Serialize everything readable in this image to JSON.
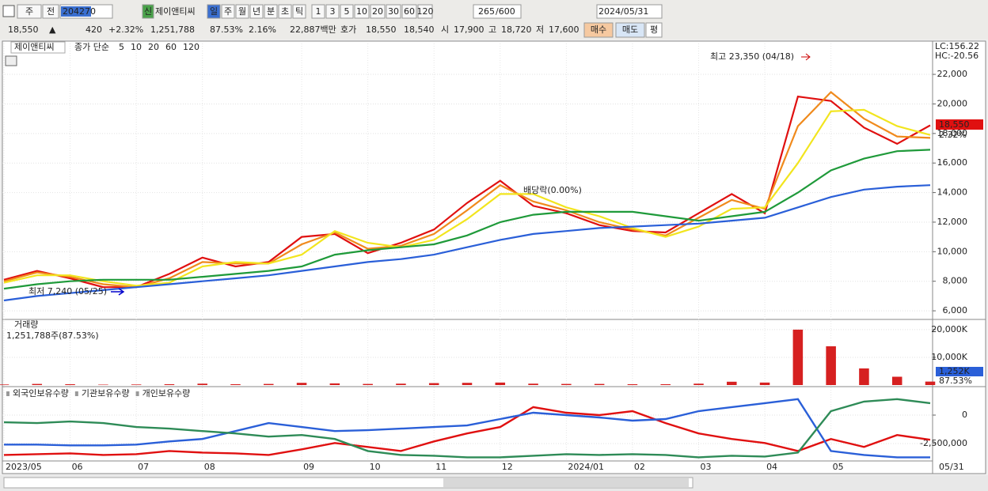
{
  "toolbar": {
    "period": "주",
    "prev": "전",
    "code": "204270",
    "new_badge": "신",
    "name": "제이앤티씨",
    "intervals": [
      "일",
      "주",
      "월",
      "년",
      "분",
      "초",
      "틱"
    ],
    "minutes": [
      "1",
      "3",
      "5",
      "10",
      "20",
      "30",
      "60",
      "120"
    ],
    "count": "265",
    "max": "/600",
    "date": "2024/05/31"
  },
  "info": {
    "close": "18,550",
    "dir": "▲",
    "change": "420",
    "rate": "+2.32%",
    "volume": "1,251,788",
    "vol_ratio": "87.53%",
    "turnover": "2.16%",
    "amount": "22,887백만",
    "quote": "호가",
    "ask": "18,550",
    "bid": "18,540",
    "open_label": "시",
    "open": "17,900",
    "high_label": "고",
    "high": "18,720",
    "low_label": "저",
    "low": "17,600",
    "buy": "매수",
    "sell": "매도",
    "avg": "평"
  },
  "chart_data": [
    {
      "type": "line",
      "name": "제이앤티씨",
      "legend_prefix": "종가 단순",
      "categories": [
        "2023/05",
        null,
        "06",
        null,
        "07",
        null,
        "08",
        null,
        null,
        "09",
        null,
        "10",
        null,
        "11",
        null,
        "12",
        null,
        "2024/01",
        null,
        "02",
        null,
        "03",
        null,
        "04",
        null,
        "05",
        null,
        null,
        null
      ],
      "series": [
        {
          "name": "5",
          "color": "#e01010",
          "values": [
            8100,
            8700,
            8200,
            7600,
            7600,
            8500,
            9600,
            9000,
            9300,
            11000,
            11200,
            9900,
            10600,
            11500,
            13300,
            14800,
            13100,
            12600,
            11800,
            11400,
            11300,
            12600,
            13900,
            12600,
            20500,
            20200,
            18400,
            17300,
            18550
          ]
        },
        {
          "name": "10",
          "color": "#f08a1c",
          "values": [
            8000,
            8600,
            8300,
            7800,
            7600,
            8200,
            9300,
            9200,
            9200,
            10500,
            11300,
            10200,
            10400,
            11200,
            12800,
            14500,
            13400,
            12800,
            12000,
            11500,
            11100,
            12300,
            13500,
            12900,
            18500,
            20800,
            19000,
            17800,
            17700
          ]
        },
        {
          "name": "20",
          "color": "#f2e51e",
          "values": [
            7900,
            8400,
            8400,
            8000,
            7700,
            7900,
            9000,
            9300,
            9200,
            9800,
            11400,
            10600,
            10300,
            10800,
            12200,
            13900,
            13900,
            13000,
            12400,
            11600,
            11000,
            11700,
            12900,
            13000,
            16000,
            19500,
            19600,
            18500,
            17900
          ]
        },
        {
          "name": "60",
          "color": "#1f9a3a",
          "values": [
            7500,
            7800,
            8000,
            8100,
            8100,
            8100,
            8300,
            8500,
            8700,
            9000,
            9800,
            10100,
            10300,
            10500,
            11100,
            12000,
            12500,
            12700,
            12700,
            12700,
            12400,
            12100,
            12400,
            12700,
            14000,
            15500,
            16300,
            16800,
            16900
          ]
        },
        {
          "name": "120",
          "color": "#2a5fd8",
          "values": [
            6700,
            7000,
            7200,
            7400,
            7600,
            7800,
            8000,
            8200,
            8400,
            8700,
            9000,
            9300,
            9500,
            9800,
            10300,
            10800,
            11200,
            11400,
            11600,
            11700,
            11800,
            11900,
            12100,
            12300,
            13000,
            13700,
            14200,
            14400,
            14500
          ]
        }
      ],
      "ylim": [
        5470,
        24090
      ],
      "yticks": [
        {
          "value": 6000,
          "label": "6,000"
        },
        {
          "value": 8000,
          "label": "8,000"
        },
        {
          "value": 10000,
          "label": "10,000"
        },
        {
          "value": 12000,
          "label": "12,000"
        },
        {
          "value": 14000,
          "label": "14,000"
        },
        {
          "value": 16000,
          "label": "16,000"
        },
        {
          "value": 18000,
          "label": "18,000"
        },
        {
          "value": 20000,
          "label": "20,000"
        },
        {
          "value": 22000,
          "label": "22,000"
        }
      ],
      "grid": true,
      "annotations": {
        "high": "최고 23,350 (04/18)",
        "low": "최저 7,240 (05/25)",
        "dividend": "배당락(0.00%)"
      },
      "right_labels": [
        "LC:156.22",
        "HC:-20.56"
      ],
      "last_value": "18,550",
      "last_rate": "2.32%",
      "end_date": "05/31"
    },
    {
      "type": "bar",
      "subtitle": "1,251,788주(87.53%)",
      "series": [
        {
          "name": "거래량",
          "color": "#d62020",
          "values": [
            200,
            400,
            300,
            150,
            200,
            300,
            500,
            300,
            400,
            800,
            600,
            400,
            500,
            700,
            800,
            900,
            500,
            400,
            400,
            300,
            300,
            500,
            1200,
            900,
            20000,
            14000,
            6000,
            3000,
            1252
          ]
        }
      ],
      "ylim": [
        0,
        23400
      ],
      "yticks": [
        {
          "value": 10000,
          "label": "10,000K"
        },
        {
          "value": 20000,
          "label": "20,000K"
        }
      ],
      "right_labels": [
        "1,252K",
        "87.53%"
      ]
    },
    {
      "type": "line",
      "series": [
        {
          "name": "외국인보유수량",
          "color": "#e01010",
          "values": [
            -3500000,
            -3430000,
            -3360000,
            -3500000,
            -3430000,
            -3150000,
            -3290000,
            -3360000,
            -3500000,
            -3010000,
            -2450000,
            -2800000,
            -3150000,
            -2310000,
            -1610000,
            -1050000,
            700000,
            210000,
            0,
            350000,
            -700000,
            -1610000,
            -2100000,
            -2450000,
            -3150000,
            -2100000,
            -2800000,
            -1750000,
            -2170000
          ]
        },
        {
          "name": "기관보유수량",
          "color": "#2a5fd8",
          "values": [
            -2590000,
            -2590000,
            -2660000,
            -2660000,
            -2590000,
            -2310000,
            -2100000,
            -1400000,
            -700000,
            -1050000,
            -1400000,
            -1330000,
            -1190000,
            -1050000,
            -910000,
            -350000,
            210000,
            0,
            -210000,
            -490000,
            -350000,
            350000,
            700000,
            1050000,
            1400000,
            -3150000,
            -3500000,
            -3710000,
            -3710000
          ]
        },
        {
          "name": "개인보유수량",
          "color": "#2e8b57",
          "values": [
            -630000,
            -700000,
            -560000,
            -700000,
            -1050000,
            -1190000,
            -1400000,
            -1610000,
            -1890000,
            -1750000,
            -2100000,
            -3150000,
            -3500000,
            -3570000,
            -3710000,
            -3710000,
            -3570000,
            -3430000,
            -3500000,
            -3430000,
            -3500000,
            -3710000,
            -3570000,
            -3640000,
            -3290000,
            350000,
            1190000,
            1400000,
            1050000
          ]
        }
      ],
      "ylim": [
        -5070000,
        2430000
      ],
      "yticks": [
        0,
        {
          "value": -2500000,
          "label": "-2,500,000"
        }
      ]
    }
  ]
}
